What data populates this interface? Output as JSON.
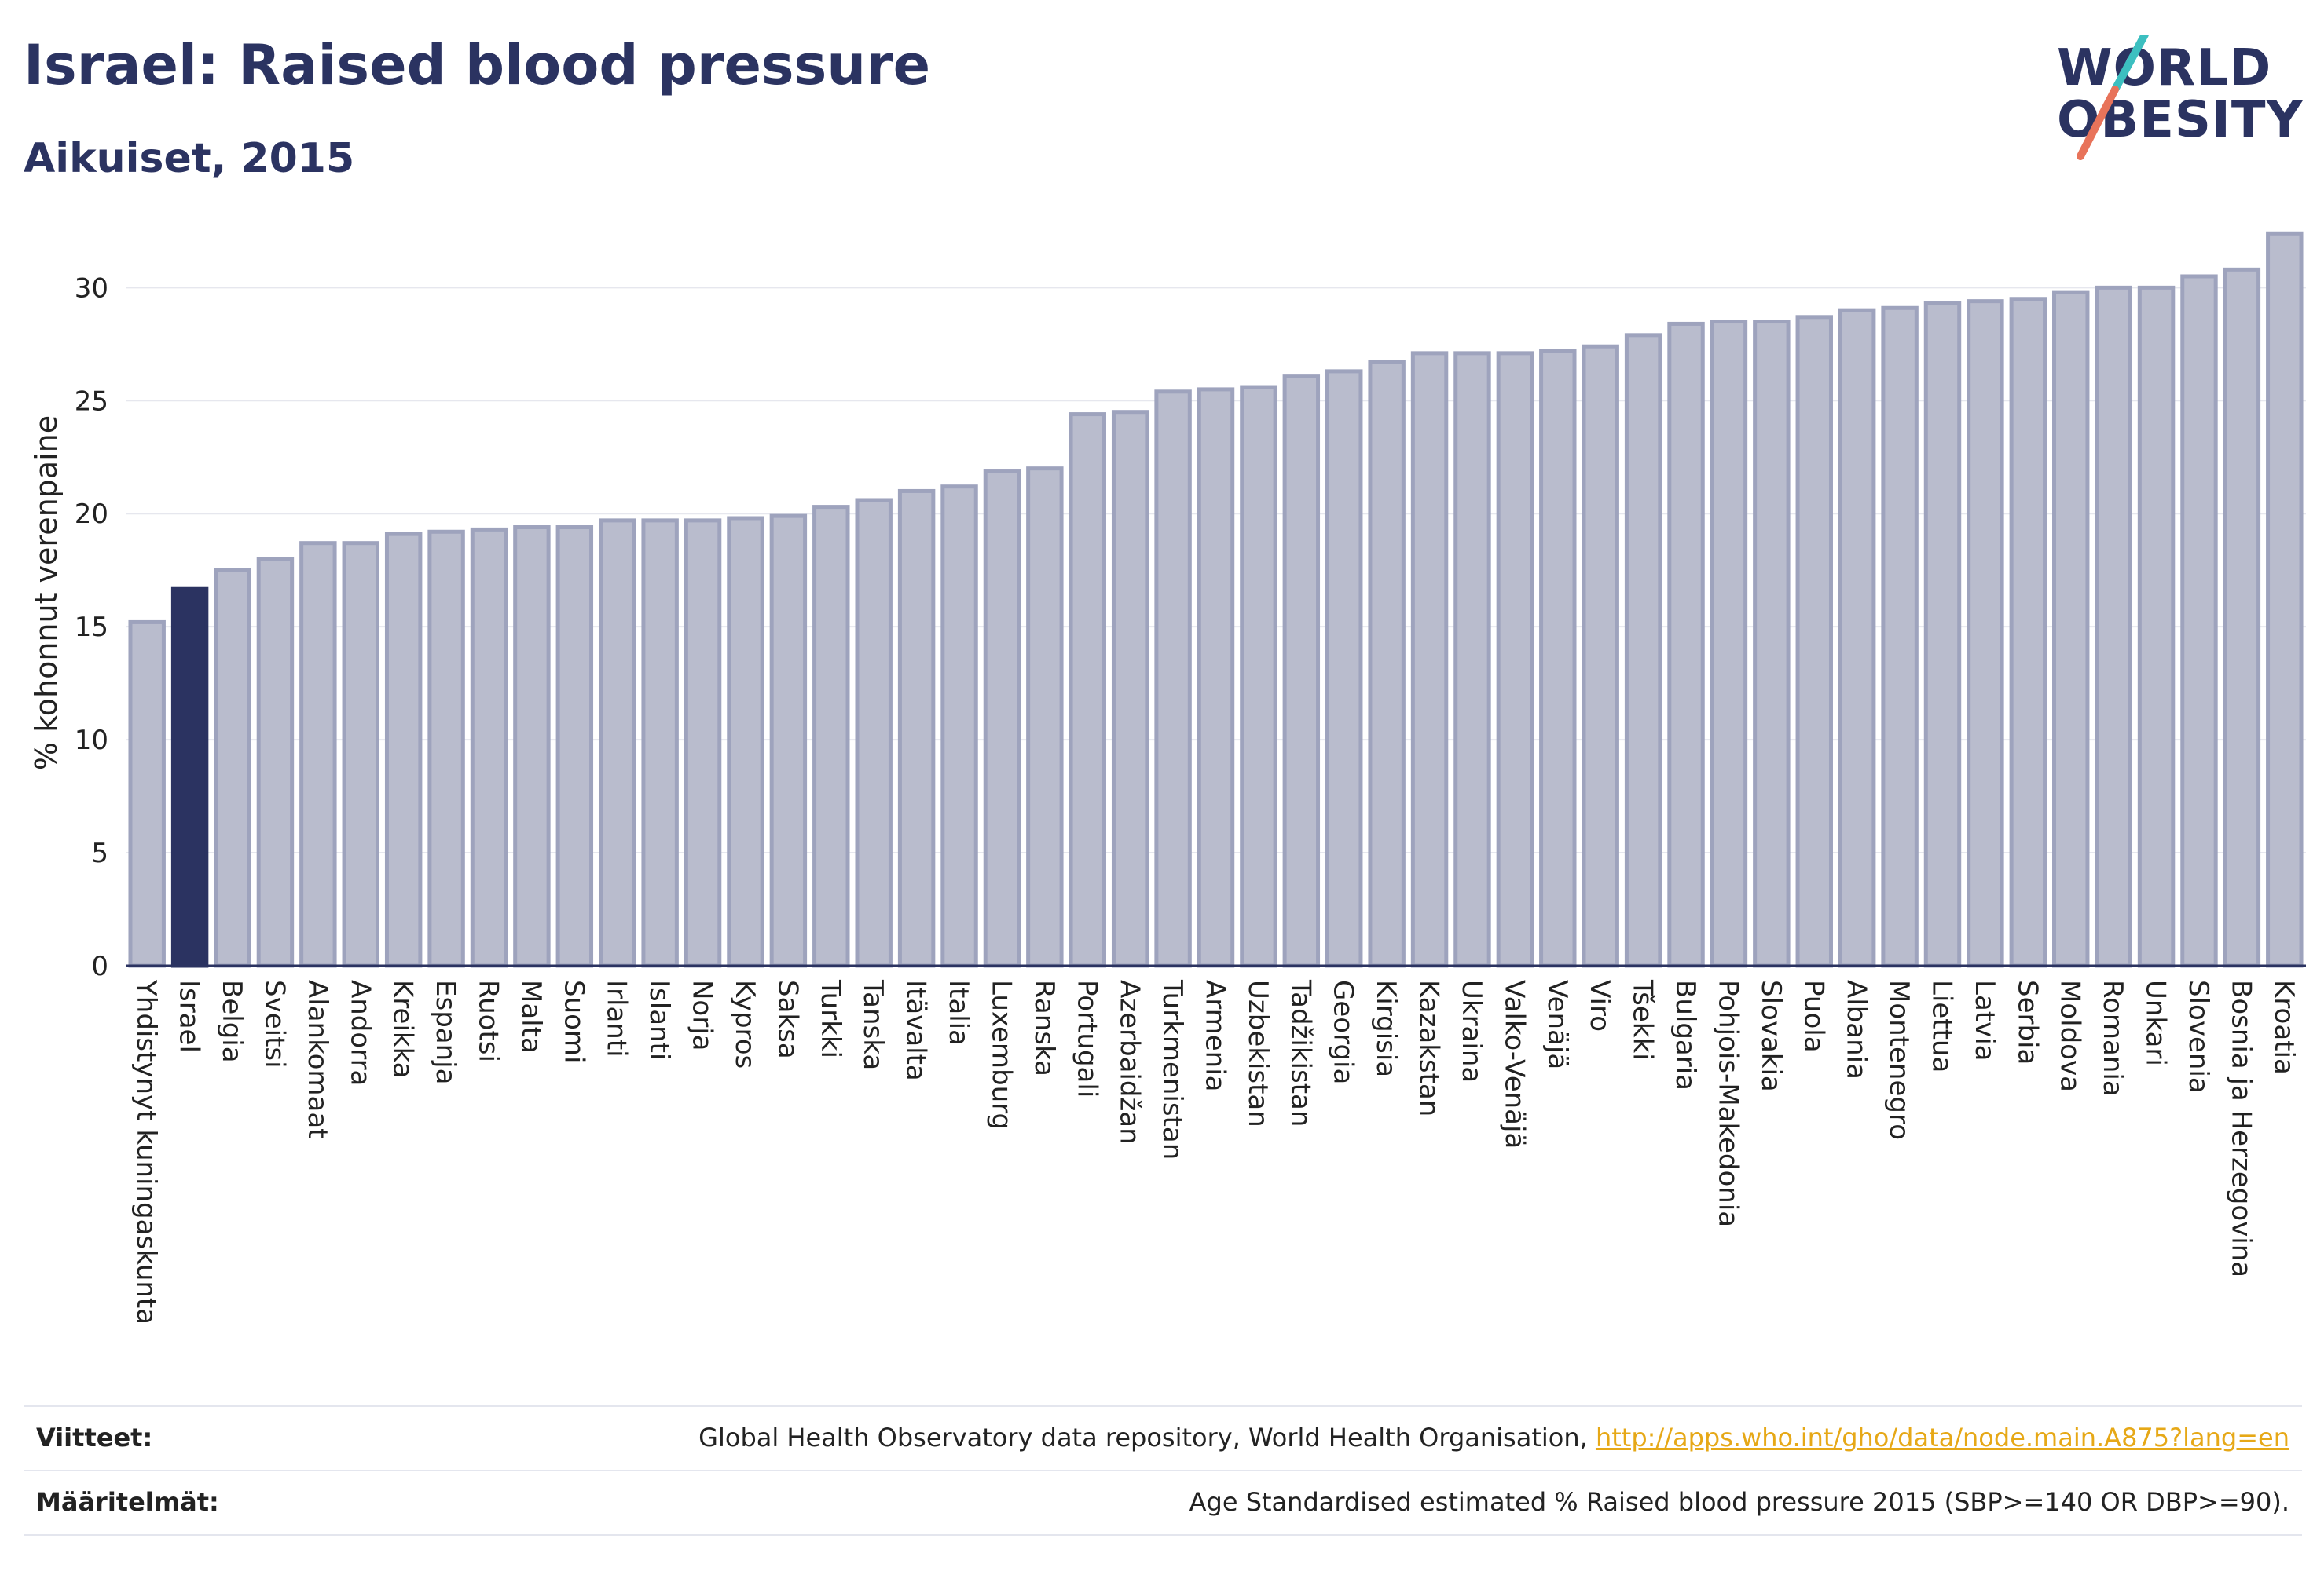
{
  "header": {
    "title": "Israel: Raised blood pressure",
    "subtitle": "Aikuiset, 2015"
  },
  "logo": {
    "line1": "WORLD",
    "line2": "OBESITY",
    "accent_colors": [
      "#3cbfc0",
      "#e8735a"
    ]
  },
  "chart_data": {
    "type": "bar",
    "ylabel": "% kohonnut verenpaine",
    "xlabel": "",
    "ylim": [
      0,
      33
    ],
    "yticks": [
      0,
      5,
      10,
      15,
      20,
      25,
      30
    ],
    "grid": true,
    "highlight": "Israel",
    "colors": {
      "bar": "#b9bccd",
      "bar_edge": "#9ea3bd",
      "highlight": "#2b3361"
    },
    "categories": [
      "Yhdistynyt kuningaskunta",
      "Israel",
      "Belgia",
      "Sveitsi",
      "Alankomaat",
      "Andorra",
      "Kreikka",
      "Espanja",
      "Ruotsi",
      "Malta",
      "Suomi",
      "Irlanti",
      "Islanti",
      "Norja",
      "Kypros",
      "Saksa",
      "Turkki",
      "Tanska",
      "Itävalta",
      "Italia",
      "Luxemburg",
      "Ranska",
      "Portugali",
      "Azerbaidžan",
      "Turkmenistan",
      "Armenia",
      "Uzbekistan",
      "Tadžikistan",
      "Georgia",
      "Kirgisia",
      "Kazakstan",
      "Ukraina",
      "Valko-Venäjä",
      "Venäjä",
      "Viro",
      "Tšekki",
      "Bulgaria",
      "Pohjois-Makedonia",
      "Slovakia",
      "Puola",
      "Albania",
      "Montenegro",
      "Liettua",
      "Latvia",
      "Serbia",
      "Moldova",
      "Romania",
      "Unkari",
      "Slovenia",
      "Bosnia ja Herzegovina",
      "Kroatia"
    ],
    "values": [
      15.2,
      16.7,
      17.5,
      18.0,
      18.7,
      18.7,
      19.1,
      19.2,
      19.3,
      19.4,
      19.4,
      19.7,
      19.7,
      19.7,
      19.8,
      19.9,
      20.3,
      20.6,
      21.0,
      21.2,
      21.9,
      22.0,
      24.4,
      24.5,
      25.4,
      25.5,
      25.6,
      26.1,
      26.3,
      26.7,
      27.1,
      27.1,
      27.1,
      27.2,
      27.4,
      27.9,
      28.4,
      28.5,
      28.5,
      28.7,
      29.0,
      29.1,
      29.3,
      29.4,
      29.5,
      29.8,
      30.0,
      30.0,
      30.5,
      30.8,
      32.4
    ]
  },
  "footer": {
    "references_label": "Viitteet:",
    "references_text": "Global Health Observatory data repository, World Health Organisation, ",
    "references_link": "http://apps.who.int/gho/data/node.main.A875?lang=en",
    "definitions_label": "Määritelmät:",
    "definitions_text": "Age Standardised estimated % Raised blood pressure 2015 (SBP>=140 OR DBP>=90)."
  }
}
